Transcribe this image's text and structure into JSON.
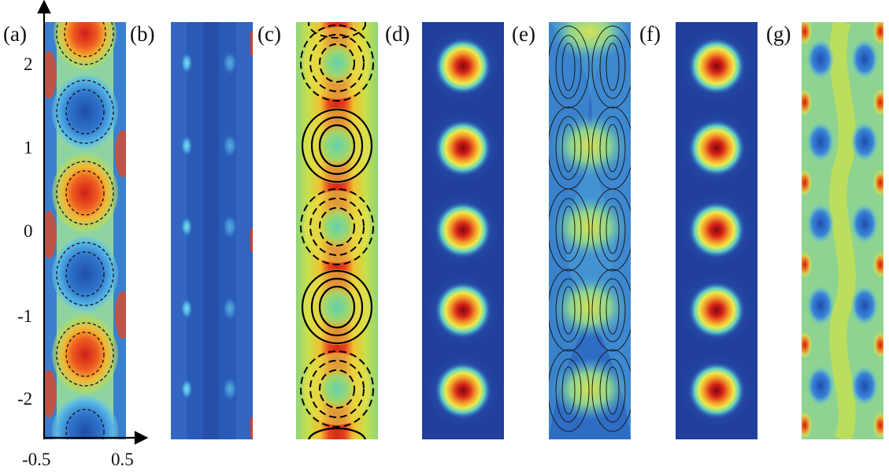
{
  "figure": {
    "panel_labels": [
      "(a)",
      "(b)",
      "(c)",
      "(d)",
      "(e)",
      "(f)",
      "(g)"
    ],
    "y_ticks": [
      "2",
      "1",
      "0",
      "-1",
      "-2"
    ],
    "x_ticks": [
      "-0.5",
      "0.5"
    ]
  },
  "colors": {
    "deep_blue": "#1c3f9e",
    "mid_blue": "#2f66c8",
    "cyan": "#52c6e6",
    "green": "#8fd48c",
    "yellow": "#ecec4a",
    "orange": "#f39b2a",
    "red": "#d9241c",
    "dark_red": "#8f0a10"
  },
  "chart_data": {
    "type": "heatmap",
    "x_range": [
      -0.5,
      0.5
    ],
    "y_range": [
      -2.5,
      2.5
    ],
    "y_tick_values": [
      2,
      1,
      0,
      -1,
      -2
    ],
    "x_tick_values": [
      -0.5,
      0.5
    ]
  }
}
